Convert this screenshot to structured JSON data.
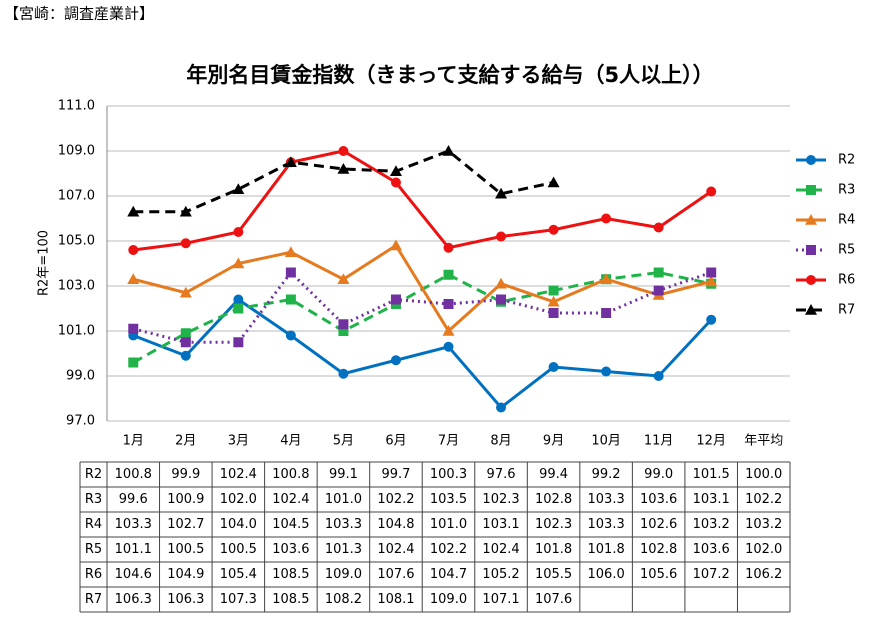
{
  "header": "【宮崎：調査産業計】",
  "chart_data": {
    "type": "line",
    "title": "年別名目賃金指数（きまって支給する給与（5人以上））",
    "y_label": "R2年=100",
    "categories": [
      "1月",
      "2月",
      "3月",
      "4月",
      "5月",
      "6月",
      "7月",
      "8月",
      "9月",
      "10月",
      "11月",
      "12月"
    ],
    "average_category": "年平均",
    "ylim": [
      97,
      111
    ],
    "yticks": [
      {
        "value": 97,
        "label": "97.0"
      },
      {
        "value": 99,
        "label": "99.0"
      },
      {
        "value": 101,
        "label": "101.0"
      },
      {
        "value": 103,
        "label": "103.0"
      },
      {
        "value": 105,
        "label": "105.0"
      },
      {
        "value": 107,
        "label": "107.0"
      },
      {
        "value": 109,
        "label": "109.0"
      },
      {
        "value": 111,
        "label": "111.0"
      }
    ],
    "grid": true,
    "legend": "right",
    "series": [
      {
        "name": "R2",
        "color": "#0070c0",
        "dash": "solid",
        "marker": "circle",
        "values": [
          100.8,
          99.9,
          102.4,
          100.8,
          99.1,
          99.7,
          100.3,
          97.6,
          99.4,
          99.2,
          99.0,
          101.5
        ],
        "value_labels": [
          "100.8",
          "99.9",
          "102.4",
          "100.8",
          "99.1",
          "99.7",
          "100.3",
          "97.6",
          "99.4",
          "99.2",
          "99.0",
          "101.5"
        ],
        "average": {
          "value": 100,
          "label": "100.0"
        }
      },
      {
        "name": "R3",
        "color": "#1fb34a",
        "dash": "dashed",
        "marker": "square",
        "values": [
          99.6,
          100.9,
          102.0,
          102.4,
          101.0,
          102.2,
          103.5,
          102.3,
          102.8,
          103.3,
          103.6,
          103.1
        ],
        "value_labels": [
          "99.6",
          "100.9",
          "102.0",
          "102.4",
          "101.0",
          "102.2",
          "103.5",
          "102.3",
          "102.8",
          "103.3",
          "103.6",
          "103.1"
        ],
        "average": {
          "value": 102.2,
          "label": "102.2"
        }
      },
      {
        "name": "R4",
        "color": "#e67a1e",
        "dash": "solid",
        "marker": "triangle",
        "values": [
          103.3,
          102.7,
          104.0,
          104.5,
          103.3,
          104.8,
          101.0,
          103.1,
          102.3,
          103.3,
          102.6,
          103.2
        ],
        "value_labels": [
          "103.3",
          "102.7",
          "104.0",
          "104.5",
          "103.3",
          "104.8",
          "101.0",
          "103.1",
          "102.3",
          "103.3",
          "102.6",
          "103.2"
        ],
        "average": {
          "value": 103.2,
          "label": "103.2"
        }
      },
      {
        "name": "R5",
        "color": "#7030a0",
        "dash": "dotted",
        "marker": "square",
        "values": [
          101.1,
          100.5,
          100.5,
          103.6,
          101.3,
          102.4,
          102.2,
          102.4,
          101.8,
          101.8,
          102.8,
          103.6
        ],
        "value_labels": [
          "101.1",
          "100.5",
          "100.5",
          "103.6",
          "101.3",
          "102.4",
          "102.2",
          "102.4",
          "101.8",
          "101.8",
          "102.8",
          "103.6"
        ],
        "average": {
          "value": 102,
          "label": "102.0"
        }
      },
      {
        "name": "R6",
        "color": "#ee1111",
        "dash": "solid",
        "marker": "circle",
        "values": [
          104.6,
          104.9,
          105.4,
          108.5,
          109.0,
          107.6,
          104.7,
          105.2,
          105.5,
          106.0,
          105.6,
          107.2
        ],
        "value_labels": [
          "104.6",
          "104.9",
          "105.4",
          "108.5",
          "109.0",
          "107.6",
          "104.7",
          "105.2",
          "105.5",
          "106.0",
          "105.6",
          "107.2"
        ],
        "average": {
          "value": 106.2,
          "label": "106.2"
        }
      },
      {
        "name": "R7",
        "color": "#000000",
        "dash": "dashed",
        "marker": "triangle",
        "values": [
          106.3,
          106.3,
          107.3,
          108.5,
          108.2,
          108.1,
          109.0,
          107.1,
          107.6,
          null,
          null,
          null
        ],
        "value_labels": [
          "106.3",
          "106.3",
          "107.3",
          "108.5",
          "108.2",
          "108.1",
          "109.0",
          "107.1",
          "107.6",
          null,
          null,
          null
        ],
        "average": null
      }
    ]
  }
}
